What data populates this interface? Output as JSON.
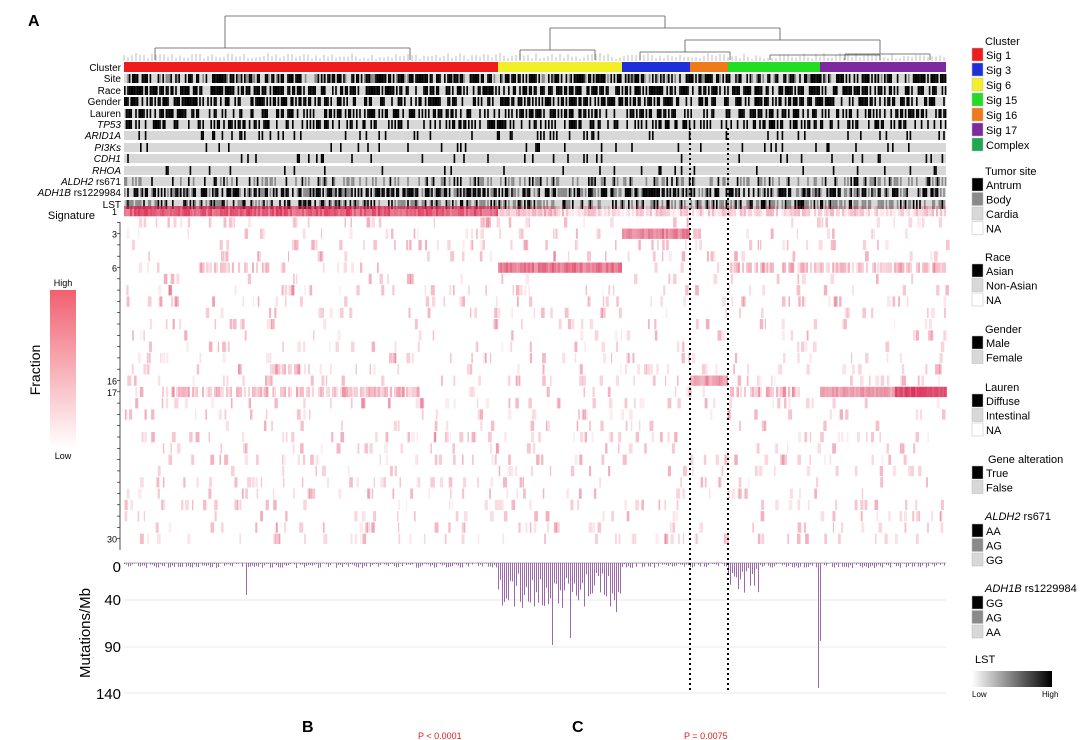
{
  "panels": {
    "a": "A",
    "b": "B",
    "c": "C"
  },
  "p_values": {
    "b": "P < 0.0001",
    "c": "P = 0.0075"
  },
  "tracks": {
    "cluster": "Cluster",
    "site": "Site",
    "race": "Race",
    "gender": "Gender",
    "lauren": "Lauren",
    "tp53": "TP53",
    "arid1a": "ARID1A",
    "pi3ks": "PI3Ks",
    "cdh1": "CDH1",
    "rhoa": "RHOA",
    "aldh2_gene": "ALDH2",
    "aldh2_snp": " rs671",
    "adh1b_gene": "ADH1B",
    "adh1b_snp": " rs1229984",
    "lst": "LST"
  },
  "signature": {
    "label": "Signature",
    "row_labels": [
      "1",
      "3",
      "6",
      "16",
      "17",
      "30"
    ]
  },
  "fraction_scale": {
    "title": "Fraction",
    "high": "High",
    "low": "Low"
  },
  "mutations": {
    "ylabel": "Mutations/Mb",
    "ticks": [
      "0",
      "40",
      "90",
      "140"
    ]
  },
  "legends": {
    "cluster": {
      "title": "Cluster",
      "items": [
        {
          "label": "Sig 1",
          "color": "#ee1c1c"
        },
        {
          "label": "Sig 3",
          "color": "#1f2fd8"
        },
        {
          "label": "Sig 6",
          "color": "#f2ee2a"
        },
        {
          "label": "Sig 15",
          "color": "#22dd22"
        },
        {
          "label": "Sig 16",
          "color": "#ee7a1c"
        },
        {
          "label": "Sig 17",
          "color": "#7e2a9e"
        },
        {
          "label": "Complex",
          "color": "#1fa854"
        }
      ]
    },
    "tumor_site": {
      "title": "Tumor site",
      "items": [
        {
          "label": "Antrum",
          "color": "#000000"
        },
        {
          "label": "Body",
          "color": "#8a8a8a"
        },
        {
          "label": "Cardia",
          "color": "#d8d8d8"
        },
        {
          "label": "NA",
          "color": "#ffffff"
        }
      ]
    },
    "race": {
      "title": "Race",
      "items": [
        {
          "label": "Asian",
          "color": "#000000"
        },
        {
          "label": "Non-Asian",
          "color": "#d8d8d8"
        },
        {
          "label": "NA",
          "color": "#ffffff"
        }
      ]
    },
    "gender": {
      "title": "Gender",
      "items": [
        {
          "label": "Male",
          "color": "#000000"
        },
        {
          "label": "Female",
          "color": "#d8d8d8"
        }
      ]
    },
    "lauren": {
      "title": "Lauren",
      "items": [
        {
          "label": "Diffuse",
          "color": "#000000"
        },
        {
          "label": "Intestinal",
          "color": "#d8d8d8"
        },
        {
          "label": "NA",
          "color": "#ffffff"
        }
      ]
    },
    "gene_alteration": {
      "title": "Gene alteration",
      "items": [
        {
          "label": "True",
          "color": "#000000"
        },
        {
          "label": "False",
          "color": "#d8d8d8"
        }
      ]
    },
    "aldh2": {
      "title_gene": "ALDH2",
      "title_snp": " rs671",
      "items": [
        {
          "label": "AA",
          "color": "#000000"
        },
        {
          "label": "AG",
          "color": "#8a8a8a"
        },
        {
          "label": "GG",
          "color": "#d8d8d8"
        }
      ]
    },
    "adh1b": {
      "title_gene": "ADH1B",
      "title_snp": " rs1229984",
      "items": [
        {
          "label": "GG",
          "color": "#000000"
        },
        {
          "label": "AG",
          "color": "#8a8a8a"
        },
        {
          "label": "AA",
          "color": "#d8d8d8"
        }
      ]
    },
    "lst": {
      "title": "LST",
      "low": "Low",
      "high": "High"
    }
  }
}
